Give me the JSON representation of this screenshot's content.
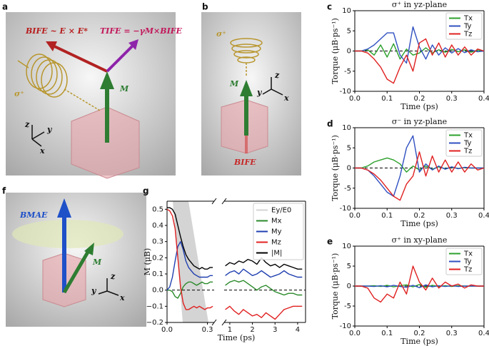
{
  "panels": {
    "a": {
      "letter": "a",
      "b_ife": "BIFE ~ E × E*",
      "t_ife": "TIFE = −γM×BIFE",
      "sigma": "σ⁺",
      "m": "M",
      "axes": [
        "z",
        "y",
        "x"
      ]
    },
    "b": {
      "letter": "b",
      "sigma": "σ⁺",
      "m": "M",
      "b_ife": "BIFE",
      "axes": [
        "z",
        "y",
        "x"
      ]
    },
    "f": {
      "letter": "f",
      "b_mae": "BMAE",
      "m": "M",
      "axes": [
        "z",
        "y",
        "x"
      ]
    }
  },
  "chart_data": [
    {
      "type": "line",
      "panel": "c",
      "title": "σ⁺ in yz-plane",
      "xlabel": "Time (ps)",
      "ylabel": "Torque (μB·ps⁻¹)",
      "x": [
        0,
        0.02,
        0.04,
        0.06,
        0.08,
        0.1,
        0.12,
        0.14,
        0.16,
        0.18,
        0.2,
        0.22,
        0.24,
        0.26,
        0.28,
        0.3,
        0.32,
        0.34,
        0.36,
        0.38,
        0.4
      ],
      "series": [
        {
          "name": "Tx",
          "color": "#2ca02c",
          "values": [
            0,
            0,
            0.3,
            -1,
            1.5,
            -1.5,
            1.8,
            -2,
            0.5,
            -1,
            -0.5,
            0.8,
            -0.5,
            0.3,
            -0.3,
            0.4,
            -0.2,
            0.3,
            -0.3,
            0.2,
            0
          ]
        },
        {
          "name": "Ty",
          "color": "#3050c0",
          "values": [
            0,
            0,
            0.5,
            1.5,
            3,
            4.5,
            4.5,
            -1,
            -3,
            6,
            1,
            -2,
            1.5,
            -1,
            0.8,
            -0.5,
            0.6,
            -0.4,
            0.3,
            -0.2,
            0
          ]
        },
        {
          "name": "Tz",
          "color": "#e02020",
          "values": [
            0,
            0,
            -0.5,
            -2,
            -4,
            -7,
            -8,
            -4,
            -1,
            -5,
            2,
            3,
            -1,
            2,
            -1.5,
            1.5,
            -1,
            1,
            -1,
            0.5,
            0
          ]
        }
      ],
      "xlim": [
        0,
        0.4
      ],
      "xticks": [
        {
          "value": 0,
          "label": "0.0"
        },
        0.1,
        0.2,
        0.3,
        0.4
      ],
      "ylim": [
        -10,
        10
      ],
      "yticks": [
        -10,
        -5,
        0,
        5,
        10
      ],
      "legend": "upper right"
    },
    {
      "type": "line",
      "panel": "d",
      "title": "σ⁻ in yz-plane",
      "xlabel": "Time (ps)",
      "ylabel": "Torque (μB·ps⁻¹)",
      "x": [
        0,
        0.02,
        0.04,
        0.06,
        0.08,
        0.1,
        0.12,
        0.14,
        0.16,
        0.18,
        0.2,
        0.22,
        0.24,
        0.26,
        0.28,
        0.3,
        0.32,
        0.34,
        0.36,
        0.38,
        0.4
      ],
      "series": [
        {
          "name": "Tx",
          "color": "#2ca02c",
          "values": [
            0,
            0,
            0.5,
            1.5,
            2,
            2.5,
            2,
            1,
            -1,
            0.5,
            -0.5,
            0.5,
            -0.3,
            0.3,
            -0.2,
            0.2,
            -0.1,
            0.1,
            0,
            0,
            0
          ]
        },
        {
          "name": "Ty",
          "color": "#3050c0",
          "values": [
            0,
            0,
            -0.5,
            -2,
            -4,
            -6,
            -7,
            -2,
            5,
            8,
            -1,
            1,
            -0.5,
            0.5,
            -0.3,
            0.3,
            -0.2,
            0.2,
            0,
            0,
            0
          ]
        },
        {
          "name": "Tz",
          "color": "#e02020",
          "values": [
            0,
            0,
            -0.5,
            -1.5,
            -3,
            -5,
            -7,
            -8,
            -4,
            -2,
            4,
            -2,
            3,
            -1,
            2,
            -1,
            1.5,
            -1,
            1,
            -0.5,
            0
          ]
        }
      ],
      "xlim": [
        0,
        0.4
      ],
      "xticks": [
        {
          "value": 0,
          "label": "0.0"
        },
        0.1,
        0.2,
        0.3,
        0.4
      ],
      "ylim": [
        -10,
        10
      ],
      "yticks": [
        -10,
        -5,
        0,
        5,
        10
      ],
      "legend": "upper right"
    },
    {
      "type": "line",
      "panel": "e",
      "title": "σ⁺ in xy-plane",
      "xlabel": "Time (ps)",
      "ylabel": "Torque (μB·ps⁻¹)",
      "x": [
        0,
        0.02,
        0.04,
        0.06,
        0.08,
        0.1,
        0.12,
        0.14,
        0.16,
        0.18,
        0.2,
        0.22,
        0.24,
        0.26,
        0.28,
        0.3,
        0.32,
        0.34,
        0.36,
        0.38,
        0.4
      ],
      "series": [
        {
          "name": "Tx",
          "color": "#2ca02c",
          "values": [
            0,
            0,
            0,
            0.1,
            -0.1,
            0.2,
            -0.2,
            0.1,
            0.3,
            -0.2,
            0.4,
            -0.3,
            0.2,
            -0.1,
            0.1,
            -0.1,
            0.1,
            0,
            0,
            0,
            0
          ]
        },
        {
          "name": "Ty",
          "color": "#3050c0",
          "values": [
            0,
            0,
            0,
            -0.1,
            0.1,
            -0.2,
            0.2,
            -0.1,
            -0.3,
            0.2,
            -0.4,
            0.3,
            -0.2,
            0.1,
            -0.1,
            0.1,
            -0.1,
            0,
            0,
            0,
            0
          ]
        },
        {
          "name": "Tz",
          "color": "#e02020",
          "values": [
            0,
            0,
            -0.5,
            -3,
            -4,
            -2,
            -3,
            1,
            -2,
            5,
            1,
            -1,
            2,
            -0.5,
            1,
            0,
            0.5,
            -0.5,
            0.3,
            0,
            0
          ]
        }
      ],
      "xlim": [
        0,
        0.4
      ],
      "xticks": [
        {
          "value": 0,
          "label": "0.0"
        },
        0.1,
        0.2,
        0.3,
        0.4
      ],
      "ylim": [
        -10,
        10
      ],
      "yticks": [
        -10,
        -5,
        0,
        5,
        10
      ],
      "legend": "upper right"
    },
    {
      "type": "line",
      "panel": "g",
      "xlabel": "Time (ps)",
      "ylabel": "M (μB)",
      "pulse": {
        "name": "Ey/E0",
        "color": "#d4d4d4"
      },
      "x": [
        0,
        0.02,
        0.04,
        0.06,
        0.08,
        0.1,
        0.12,
        0.14,
        0.16,
        0.18,
        0.2,
        0.22,
        0.24,
        0.26,
        0.28,
        0.3,
        0.32,
        0.34,
        0.8,
        1.0,
        1.2,
        1.4,
        1.6,
        1.8,
        2.0,
        2.2,
        2.4,
        2.6,
        2.8,
        3.0,
        3.2,
        3.4,
        3.6,
        3.8,
        4.0,
        4.2
      ],
      "series": [
        {
          "name": "Mx",
          "color": "#2a8a2a",
          "values": [
            0,
            0,
            -0.01,
            -0.04,
            -0.05,
            -0.02,
            0.02,
            0.04,
            0.05,
            0.05,
            0.04,
            0.03,
            0.04,
            0.05,
            0.04,
            0.04,
            0.05,
            0.05,
            0.03,
            0.05,
            0.06,
            0.05,
            0.06,
            0.04,
            0.02,
            0,
            0.02,
            0.03,
            0.01,
            -0.01,
            -0.02,
            -0.03,
            -0.02,
            -0.02,
            -0.03,
            -0.03
          ]
        },
        {
          "name": "My",
          "color": "#2040b0",
          "values": [
            0,
            0.02,
            0.08,
            0.18,
            0.27,
            0.3,
            0.25,
            0.18,
            0.14,
            0.12,
            0.1,
            0.09,
            0.08,
            0.08,
            0.08,
            0.08,
            0.09,
            0.09,
            0.09,
            0.11,
            0.12,
            0.1,
            0.13,
            0.11,
            0.09,
            0.1,
            0.12,
            0.1,
            0.08,
            0.09,
            0.1,
            0.12,
            0.1,
            0.09,
            0.08,
            0.08
          ]
        },
        {
          "name": "Mz",
          "color": "#e02020",
          "values": [
            0.5,
            0.49,
            0.46,
            0.38,
            0.2,
            0.02,
            -0.08,
            -0.12,
            -0.12,
            -0.11,
            -0.1,
            -0.11,
            -0.1,
            -0.11,
            -0.12,
            -0.11,
            -0.11,
            -0.1,
            -0.12,
            -0.1,
            -0.13,
            -0.15,
            -0.12,
            -0.14,
            -0.16,
            -0.15,
            -0.17,
            -0.14,
            -0.16,
            -0.18,
            -0.15,
            -0.12,
            -0.11,
            -0.1,
            -0.1,
            -0.1
          ]
        },
        {
          "name": "|M|",
          "color": "#000000",
          "values": [
            0.51,
            0.51,
            0.5,
            0.47,
            0.4,
            0.33,
            0.27,
            0.22,
            0.19,
            0.17,
            0.15,
            0.14,
            0.13,
            0.14,
            0.13,
            0.13,
            0.14,
            0.14,
            0.15,
            0.17,
            0.16,
            0.18,
            0.17,
            0.19,
            0.18,
            0.16,
            0.2,
            0.17,
            0.15,
            0.16,
            0.14,
            0.16,
            0.15,
            0.14,
            0.13,
            0.13
          ]
        }
      ],
      "xlim": [
        0,
        0.35
      ],
      "xticks": [
        {
          "value": 0,
          "label": "0.0"
        },
        0.3
      ],
      "x2lim": [
        0.75,
        4.35
      ],
      "x2ticks": [
        1,
        2,
        3,
        4
      ],
      "ylim": [
        -0.2,
        0.55
      ],
      "yticks": [
        {
          "value": -0.2,
          "label": "−0.2"
        },
        {
          "value": -0.1,
          "label": "−0.1"
        },
        {
          "value": 0,
          "label": "0.0"
        },
        0.1,
        0.2,
        0.3,
        0.4,
        0.5
      ],
      "legend": "upper right"
    }
  ]
}
